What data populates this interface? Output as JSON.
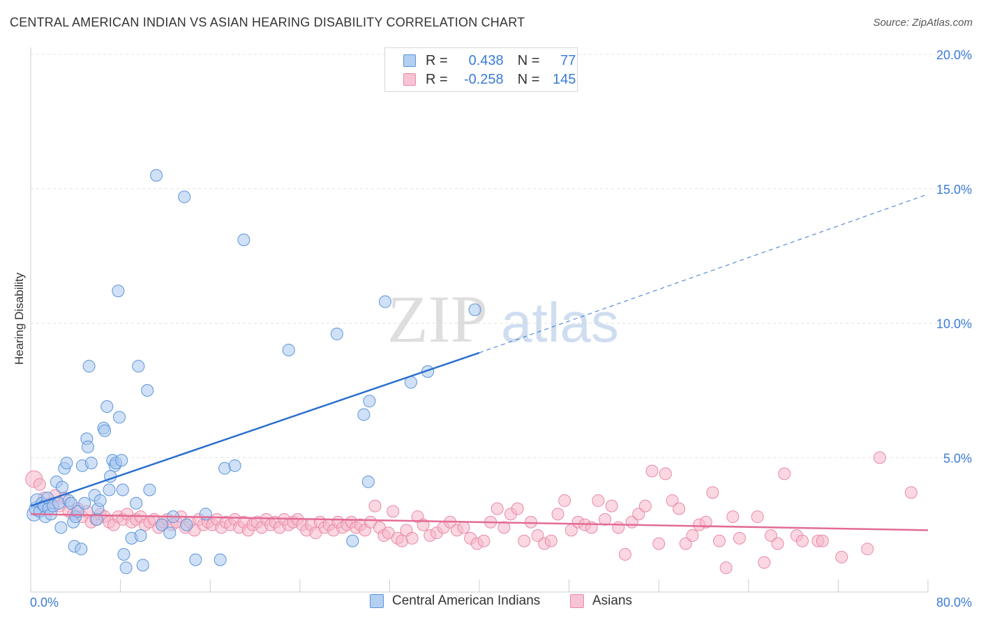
{
  "title": "CENTRAL AMERICAN INDIAN VS ASIAN HEARING DISABILITY CORRELATION CHART",
  "source": "Source: ZipAtlas.com",
  "watermark": {
    "zip": "ZIP",
    "atlas": "atlas"
  },
  "legend": {
    "r_label": "R =",
    "n_label": "N =",
    "rows": [
      {
        "r": "0.438",
        "n": "77"
      },
      {
        "r": "-0.258",
        "n": "145"
      }
    ]
  },
  "chart_data": {
    "type": "scatter",
    "title": "CENTRAL AMERICAN INDIAN VS ASIAN HEARING DISABILITY CORRELATION CHART",
    "xlabel": "",
    "ylabel": "Hearing Disability",
    "xlim": [
      0,
      80
    ],
    "ylim": [
      0,
      20
    ],
    "x_tick_labels": [
      "0.0%",
      "80.0%"
    ],
    "y_ticks": [
      5,
      10,
      15,
      20
    ],
    "y_tick_labels": [
      "5.0%",
      "10.0%",
      "15.0%",
      "20.0%"
    ],
    "grid": true,
    "legend_position": "top-center",
    "colors": {
      "blue_fill": "#a9c9f0",
      "blue_stroke": "#5b93d9",
      "blue_line": "#2a6fcf",
      "pink_fill": "#f6b6c9",
      "pink_stroke": "#e88aa8",
      "pink_line": "#e36b94"
    },
    "series": [
      {
        "name": "Central American Indians",
        "color": "#a9c9f0",
        "trend": {
          "x0": 0,
          "y0": 3.2,
          "x1": 40,
          "y1": 8.9,
          "extend_to": 80,
          "y_extend": 14.8
        },
        "points": [
          [
            0.3,
            2.9
          ],
          [
            0.5,
            3.1
          ],
          [
            0.6,
            3.4
          ],
          [
            0.8,
            3.0
          ],
          [
            1.0,
            3.3
          ],
          [
            1.2,
            3.2
          ],
          [
            1.3,
            2.8
          ],
          [
            1.5,
            3.5
          ],
          [
            1.6,
            3.1
          ],
          [
            1.8,
            2.9
          ],
          [
            2.0,
            3.2
          ],
          [
            2.3,
            4.1
          ],
          [
            2.5,
            3.3
          ],
          [
            2.7,
            2.4
          ],
          [
            2.8,
            3.9
          ],
          [
            3.0,
            4.6
          ],
          [
            3.2,
            4.8
          ],
          [
            3.4,
            3.4
          ],
          [
            3.6,
            3.3
          ],
          [
            3.8,
            2.6
          ],
          [
            3.9,
            1.7
          ],
          [
            4.0,
            2.8
          ],
          [
            4.2,
            3.0
          ],
          [
            4.5,
            1.6
          ],
          [
            4.6,
            4.7
          ],
          [
            4.8,
            3.3
          ],
          [
            5.0,
            5.7
          ],
          [
            5.1,
            5.4
          ],
          [
            5.2,
            8.4
          ],
          [
            5.4,
            4.8
          ],
          [
            5.7,
            3.6
          ],
          [
            5.9,
            2.7
          ],
          [
            6.0,
            3.1
          ],
          [
            6.2,
            3.4
          ],
          [
            6.5,
            6.1
          ],
          [
            6.6,
            6.0
          ],
          [
            6.8,
            6.9
          ],
          [
            7.0,
            3.8
          ],
          [
            7.1,
            4.3
          ],
          [
            7.3,
            4.9
          ],
          [
            7.5,
            4.7
          ],
          [
            7.6,
            4.8
          ],
          [
            7.8,
            11.2
          ],
          [
            7.9,
            6.5
          ],
          [
            8.1,
            4.9
          ],
          [
            8.2,
            3.8
          ],
          [
            8.3,
            1.4
          ],
          [
            8.5,
            0.9
          ],
          [
            9.0,
            2.0
          ],
          [
            9.4,
            3.3
          ],
          [
            9.6,
            8.4
          ],
          [
            9.8,
            2.1
          ],
          [
            10.0,
            1.0
          ],
          [
            10.4,
            7.5
          ],
          [
            10.6,
            3.8
          ],
          [
            11.2,
            15.5
          ],
          [
            11.7,
            2.5
          ],
          [
            12.4,
            2.2
          ],
          [
            12.7,
            2.8
          ],
          [
            13.7,
            14.7
          ],
          [
            13.9,
            2.5
          ],
          [
            14.7,
            1.2
          ],
          [
            15.6,
            2.9
          ],
          [
            16.9,
            1.2
          ],
          [
            17.3,
            4.6
          ],
          [
            18.2,
            4.7
          ],
          [
            19.0,
            13.1
          ],
          [
            23.0,
            9.0
          ],
          [
            27.3,
            9.6
          ],
          [
            28.7,
            1.9
          ],
          [
            29.7,
            6.6
          ],
          [
            30.1,
            4.1
          ],
          [
            30.2,
            7.1
          ],
          [
            31.6,
            10.8
          ],
          [
            33.9,
            7.8
          ],
          [
            35.4,
            8.2
          ],
          [
            39.6,
            10.5
          ]
        ]
      },
      {
        "name": "Asians",
        "color": "#f6b6c9",
        "trend": {
          "x0": 0,
          "y0": 2.9,
          "x1": 80,
          "y1": 2.3
        },
        "points": [
          [
            0.3,
            4.2
          ],
          [
            0.8,
            4.0
          ],
          [
            1.2,
            3.5
          ],
          [
            1.8,
            3.3
          ],
          [
            2.2,
            3.6
          ],
          [
            2.6,
            3.2
          ],
          [
            3.0,
            3.5
          ],
          [
            3.4,
            3.0
          ],
          [
            3.8,
            2.9
          ],
          [
            4.2,
            3.1
          ],
          [
            4.6,
            2.8
          ],
          [
            5.0,
            3.0
          ],
          [
            5.4,
            2.6
          ],
          [
            5.8,
            2.7
          ],
          [
            6.2,
            2.9
          ],
          [
            6.6,
            2.8
          ],
          [
            7.0,
            2.6
          ],
          [
            7.4,
            2.5
          ],
          [
            7.8,
            2.8
          ],
          [
            8.2,
            2.7
          ],
          [
            8.6,
            2.9
          ],
          [
            9.0,
            2.6
          ],
          [
            9.4,
            2.7
          ],
          [
            9.8,
            2.8
          ],
          [
            10.2,
            2.5
          ],
          [
            10.6,
            2.6
          ],
          [
            11.0,
            2.7
          ],
          [
            11.4,
            2.4
          ],
          [
            11.8,
            2.6
          ],
          [
            12.2,
            2.7
          ],
          [
            12.6,
            2.5
          ],
          [
            13.0,
            2.6
          ],
          [
            13.4,
            2.8
          ],
          [
            13.8,
            2.4
          ],
          [
            14.2,
            2.6
          ],
          [
            14.6,
            2.3
          ],
          [
            15.0,
            2.7
          ],
          [
            15.4,
            2.5
          ],
          [
            15.8,
            2.6
          ],
          [
            16.2,
            2.5
          ],
          [
            16.6,
            2.7
          ],
          [
            17.0,
            2.4
          ],
          [
            17.4,
            2.6
          ],
          [
            17.8,
            2.5
          ],
          [
            18.2,
            2.7
          ],
          [
            18.6,
            2.4
          ],
          [
            19.0,
            2.6
          ],
          [
            19.4,
            2.3
          ],
          [
            19.8,
            2.5
          ],
          [
            20.2,
            2.6
          ],
          [
            20.6,
            2.4
          ],
          [
            21.0,
            2.7
          ],
          [
            21.4,
            2.5
          ],
          [
            21.8,
            2.6
          ],
          [
            22.2,
            2.4
          ],
          [
            22.6,
            2.7
          ],
          [
            23.0,
            2.5
          ],
          [
            23.4,
            2.6
          ],
          [
            23.8,
            2.7
          ],
          [
            24.2,
            2.5
          ],
          [
            24.6,
            2.3
          ],
          [
            25.0,
            2.5
          ],
          [
            25.4,
            2.2
          ],
          [
            25.8,
            2.6
          ],
          [
            26.2,
            2.4
          ],
          [
            26.6,
            2.5
          ],
          [
            27.0,
            2.3
          ],
          [
            27.4,
            2.6
          ],
          [
            27.8,
            2.4
          ],
          [
            28.2,
            2.5
          ],
          [
            28.6,
            2.6
          ],
          [
            29.0,
            2.4
          ],
          [
            29.4,
            2.5
          ],
          [
            29.8,
            2.3
          ],
          [
            30.3,
            2.6
          ],
          [
            30.7,
            3.2
          ],
          [
            31.1,
            2.4
          ],
          [
            31.5,
            2.1
          ],
          [
            31.9,
            2.2
          ],
          [
            32.3,
            3.0
          ],
          [
            32.7,
            2.0
          ],
          [
            33.1,
            1.9
          ],
          [
            33.5,
            2.3
          ],
          [
            34.0,
            2.0
          ],
          [
            34.5,
            2.8
          ],
          [
            35.0,
            2.5
          ],
          [
            35.6,
            2.1
          ],
          [
            36.2,
            2.2
          ],
          [
            36.8,
            2.4
          ],
          [
            37.4,
            2.6
          ],
          [
            38.0,
            2.3
          ],
          [
            38.6,
            2.4
          ],
          [
            39.2,
            2.0
          ],
          [
            39.8,
            1.8
          ],
          [
            40.4,
            1.9
          ],
          [
            41.0,
            2.6
          ],
          [
            41.6,
            3.1
          ],
          [
            42.2,
            2.4
          ],
          [
            42.8,
            2.9
          ],
          [
            43.4,
            3.1
          ],
          [
            44.0,
            1.9
          ],
          [
            44.6,
            2.6
          ],
          [
            45.2,
            2.1
          ],
          [
            45.8,
            1.8
          ],
          [
            46.4,
            1.9
          ],
          [
            47.0,
            2.9
          ],
          [
            47.6,
            3.4
          ],
          [
            48.2,
            2.3
          ],
          [
            48.8,
            2.6
          ],
          [
            49.4,
            2.5
          ],
          [
            50.0,
            2.4
          ],
          [
            50.6,
            3.4
          ],
          [
            51.2,
            2.7
          ],
          [
            51.8,
            3.2
          ],
          [
            52.4,
            2.4
          ],
          [
            53.0,
            1.4
          ],
          [
            53.6,
            2.6
          ],
          [
            54.2,
            2.9
          ],
          [
            54.8,
            3.2
          ],
          [
            55.4,
            4.5
          ],
          [
            56.0,
            1.8
          ],
          [
            56.6,
            4.4
          ],
          [
            57.2,
            3.4
          ],
          [
            57.8,
            3.1
          ],
          [
            58.4,
            1.8
          ],
          [
            59.0,
            2.1
          ],
          [
            59.6,
            2.5
          ],
          [
            60.2,
            2.6
          ],
          [
            60.8,
            3.7
          ],
          [
            61.4,
            1.9
          ],
          [
            62.0,
            0.9
          ],
          [
            62.6,
            2.8
          ],
          [
            63.2,
            2.0
          ],
          [
            64.8,
            2.8
          ],
          [
            65.4,
            1.1
          ],
          [
            66.0,
            2.1
          ],
          [
            66.6,
            1.8
          ],
          [
            67.2,
            4.4
          ],
          [
            68.3,
            2.1
          ],
          [
            68.8,
            1.9
          ],
          [
            70.2,
            1.9
          ],
          [
            70.6,
            1.9
          ],
          [
            72.3,
            1.3
          ],
          [
            74.6,
            1.6
          ],
          [
            75.7,
            5.0
          ],
          [
            78.5,
            3.7
          ]
        ]
      }
    ]
  }
}
